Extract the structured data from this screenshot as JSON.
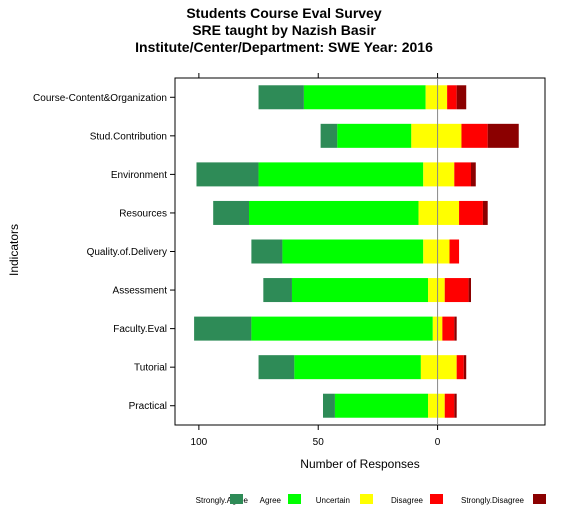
{
  "chart_data": {
    "type": "bar",
    "orientation": "horizontal",
    "stacked": "diverging",
    "title_lines": [
      "Students Course Eval Survey",
      "SRE taught by Nazish Basir",
      "Institute/Center/Department: SWE Year: 2016"
    ],
    "xlabel": "Number of Responses",
    "ylabel": "Indicators",
    "xlim": [
      110,
      -45
    ],
    "xticks": [
      100,
      50,
      0
    ],
    "xtick_labels": [
      "100",
      "50",
      "0"
    ],
    "categories": [
      "Course-Content&Organization",
      "Stud.Contribution",
      "Environment",
      "Resources",
      "Quality.of.Delivery",
      "Assessment",
      "Faculty.Eval",
      "Tutorial",
      "Practical"
    ],
    "series": [
      {
        "name": "Strongly.Agree",
        "color": "#2e8b57",
        "values": [
          19,
          7,
          26,
          15,
          13,
          12,
          24,
          15,
          5
        ]
      },
      {
        "name": "Agree",
        "color": "#00ff00",
        "values": [
          51,
          31,
          69,
          71,
          59,
          57,
          76,
          53,
          39
        ]
      },
      {
        "name": "Uncertain",
        "color": "#ffff00",
        "values": [
          9,
          21,
          13,
          17,
          11,
          7,
          4,
          15,
          7
        ]
      },
      {
        "name": "Disagree",
        "color": "#ff0000",
        "values": [
          4,
          11,
          7,
          10,
          4,
          10,
          5,
          3,
          4
        ]
      },
      {
        "name": "Strongly.Disagree",
        "color": "#8b0000",
        "values": [
          4,
          13,
          2,
          2,
          0,
          1,
          1,
          1,
          1
        ]
      }
    ],
    "neutral_split": [
      5,
      11,
      6,
      8,
      6,
      4,
      2,
      7,
      4
    ],
    "zero_line": true,
    "grid": false,
    "legend_position": "bottom"
  }
}
